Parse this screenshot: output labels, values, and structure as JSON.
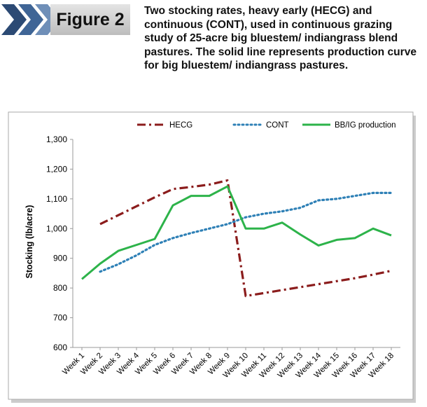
{
  "chart_data": {
    "type": "line",
    "title": "Figure 2",
    "subtitle": "Two stocking rates, heavy early (HECG) and continuous (CONT), used in continuous grazing study of 25-acre big bluestem/ indiangrass blend pastures. The solid line represents production curve for big bluestem/ indiangrass pastures.",
    "y_label": "Stocking (lb/acre)",
    "categories": [
      "Week 1",
      "Week 2",
      "Week 3",
      "Week 4",
      "Week 5",
      "Week 6",
      "Week 7",
      "Week 8",
      "Week 9",
      "Week 10",
      "Week 11",
      "Week 12",
      "Week 13",
      "Week 14",
      "Week 15",
      "Week 16",
      "Week 17",
      "Week 18"
    ],
    "series": [
      {
        "name": "HECG",
        "color": "#8b1c1c",
        "dash": "dashdot",
        "values": [
          null,
          1015,
          1045,
          1075,
          1105,
          1133,
          1140,
          1148,
          1162,
          773,
          783,
          793,
          803,
          813,
          823,
          833,
          845,
          858
        ]
      },
      {
        "name": "CONT",
        "color": "#2e80b6",
        "dash": "dotted",
        "values": [
          null,
          855,
          880,
          910,
          945,
          968,
          985,
          1000,
          1015,
          1038,
          1050,
          1058,
          1070,
          1095,
          1100,
          1110,
          1120,
          1120
        ]
      },
      {
        "name": "BB/IG production",
        "color": "#2db34a",
        "dash": "solid",
        "values": [
          830,
          882,
          925,
          945,
          965,
          1078,
          1110,
          1110,
          1142,
          1000,
          1000,
          1020,
          980,
          943,
          962,
          968,
          1000,
          977
        ]
      }
    ],
    "ylim": [
      600,
      1300
    ],
    "yticks": [
      600,
      700,
      800,
      900,
      {
        "value": 1000,
        "label": "1,000"
      },
      {
        "value": 1100,
        "label": "1,100"
      },
      {
        "value": 1200,
        "label": "1,200"
      },
      {
        "value": 1300,
        "label": "1,300"
      }
    ],
    "grid": false,
    "legend": "top"
  }
}
